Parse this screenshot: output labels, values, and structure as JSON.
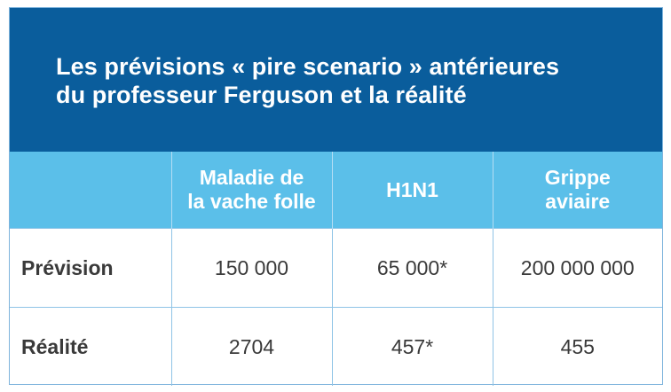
{
  "title": "Les prévisions « pire scenario » antérieures\ndu professeur Ferguson et la réalité",
  "table": {
    "headers": [
      "",
      "Maladie de\nla vache folle",
      "H1N1",
      "Grippe\naviaire"
    ],
    "rows": [
      {
        "label": "Prévision",
        "cells": [
          "150 000",
          "65 000*",
          "200 000 000"
        ]
      },
      {
        "label": "Réalité",
        "cells": [
          "2704",
          "457*",
          "455"
        ]
      }
    ]
  },
  "colors": {
    "title_background": "#0a5d9c",
    "header_background": "#5bbfe9",
    "border": "#8fc4e6"
  }
}
